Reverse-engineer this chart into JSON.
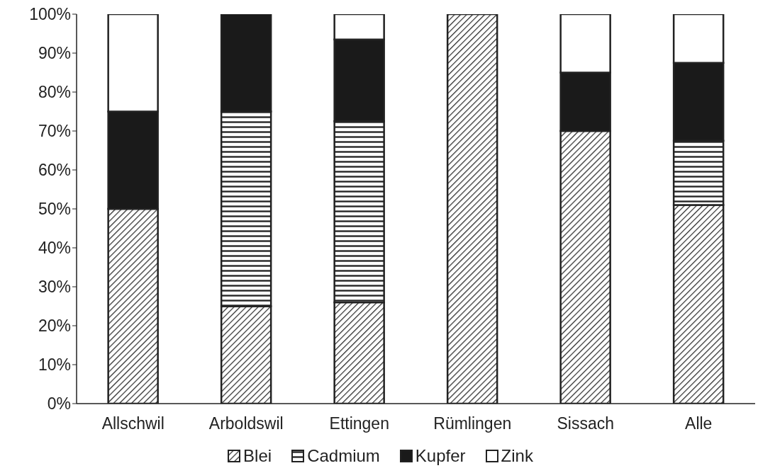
{
  "chart_data": {
    "type": "bar",
    "stacked": true,
    "categories": [
      "Allschwil",
      "Arboldswil",
      "Ettingen",
      "Rümlingen",
      "Sissach",
      "Alle"
    ],
    "series": [
      {
        "name": "Blei",
        "color": "#262626",
        "values": [
          50,
          25,
          26,
          100,
          70,
          51
        ]
      },
      {
        "name": "Cadmium",
        "color": "#262626",
        "values": [
          0,
          50,
          46.5,
          0,
          0,
          16.5
        ]
      },
      {
        "name": "Kupfer",
        "color": "#1a1a1a",
        "values": [
          25,
          25,
          21,
          0,
          15,
          20
        ]
      },
      {
        "name": "Zink",
        "color": "#ffffff",
        "values": [
          25,
          0,
          6.5,
          0,
          15,
          12.5
        ]
      }
    ],
    "ylim": [
      0,
      100
    ],
    "yticks": [
      {
        "value": 0,
        "label": "0%"
      },
      {
        "value": 10,
        "label": "10%"
      },
      {
        "value": 20,
        "label": "20%"
      },
      {
        "value": 30,
        "label": "30%"
      },
      {
        "value": 40,
        "label": "40%"
      },
      {
        "value": 50,
        "label": "50%"
      },
      {
        "value": 60,
        "label": "60%"
      },
      {
        "value": 70,
        "label": "70%"
      },
      {
        "value": 80,
        "label": "80%"
      },
      {
        "value": 90,
        "label": "90%"
      },
      {
        "value": 100,
        "label": "100%"
      }
    ],
    "grid": false,
    "legend": "bottom"
  }
}
